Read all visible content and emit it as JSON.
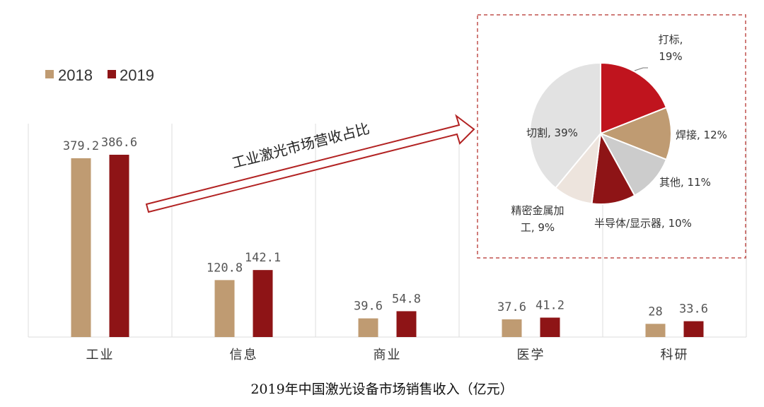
{
  "colors": {
    "y2018": "#BF9B72",
    "y2019": "#8E1416",
    "grid": "#DDDDDD",
    "dashed_box": "#C0504D",
    "arrow": "#B22222"
  },
  "caption": "2019年中国激光设备市场销售收入（亿元）",
  "arrow_label": "工业激光市场营收占比",
  "chart_data": [
    {
      "type": "bar",
      "categories": [
        "工业",
        "信息",
        "商业",
        "医学",
        "科研"
      ],
      "series": [
        {
          "name": "2018",
          "values": [
            379.2,
            120.8,
            39.6,
            37.6,
            28
          ],
          "labels": [
            "379.2",
            "120.8",
            "39.6",
            "37.6",
            "28"
          ]
        },
        {
          "name": "2019",
          "values": [
            386.6,
            142.1,
            54.8,
            41.2,
            33.6
          ],
          "labels": [
            "386.6",
            "142.1",
            "54.8",
            "41.2",
            "33.6"
          ]
        }
      ],
      "ylim": [
        0,
        440
      ],
      "grid": "vertical",
      "legend": "top-left"
    },
    {
      "type": "pie",
      "slices": [
        {
          "label_lines": [
            "打标,",
            "19%"
          ],
          "value": 19,
          "color": "#C0141E"
        },
        {
          "label_lines": [
            "焊接, 12%"
          ],
          "value": 12,
          "color": "#BF9B72"
        },
        {
          "label_lines": [
            "其他, 11%"
          ],
          "value": 11,
          "color": "#CCCCCC"
        },
        {
          "label_lines": [
            "半导体/显示器, 10%"
          ],
          "value": 10,
          "color": "#8E1416"
        },
        {
          "label_lines": [
            "精密金属加",
            "工, 9%"
          ],
          "value": 9,
          "color": "#EDE4DD"
        },
        {
          "label_lines": [
            "切割, 39%"
          ],
          "value": 39,
          "color": "#E2E2E2"
        }
      ]
    }
  ]
}
